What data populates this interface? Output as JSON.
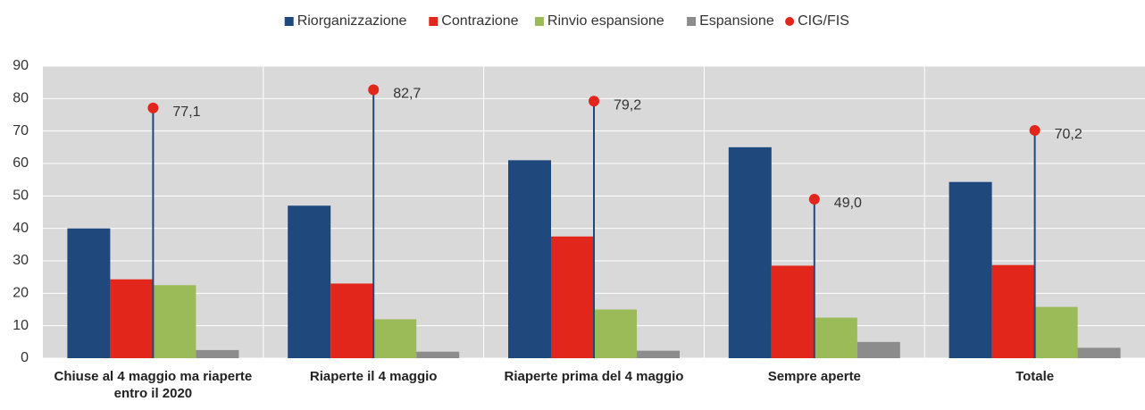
{
  "chart_data": {
    "type": "bar",
    "categories": [
      "Chiuse al 4 maggio ma riaperte entro il 2020",
      "Riaperte il 4 maggio",
      "Riaperte prima del 4 maggio",
      "Sempre aperte",
      "Totale"
    ],
    "series": [
      {
        "name": "Riorganizzazione",
        "color": "#1f497d",
        "values": [
          40,
          47,
          61,
          65,
          54.3
        ]
      },
      {
        "name": "Contrazione",
        "color": "#e2261c",
        "values": [
          24.3,
          23,
          37.5,
          28.5,
          28.7
        ]
      },
      {
        "name": "Rinvio espansione",
        "color": "#9bbb59",
        "values": [
          22.5,
          12,
          15,
          12.5,
          15.8
        ]
      },
      {
        "name": "Espansione",
        "color": "#8c8c8c",
        "values": [
          2.5,
          2,
          2.3,
          5,
          3.2
        ]
      },
      {
        "name": "CIG/FIS",
        "type": "lollipop",
        "color": "#e2261c",
        "stem_color": "#1f497d",
        "values": [
          77.1,
          82.7,
          79.2,
          49.0,
          70.2
        ],
        "value_labels": [
          "77,1",
          "82,7",
          "79,2",
          "49,0",
          "70,2"
        ]
      }
    ],
    "ylim": [
      0,
      90
    ],
    "yticks": [
      0,
      10,
      20,
      30,
      40,
      50,
      60,
      70,
      80,
      90
    ],
    "grid": true,
    "legend": "top"
  }
}
